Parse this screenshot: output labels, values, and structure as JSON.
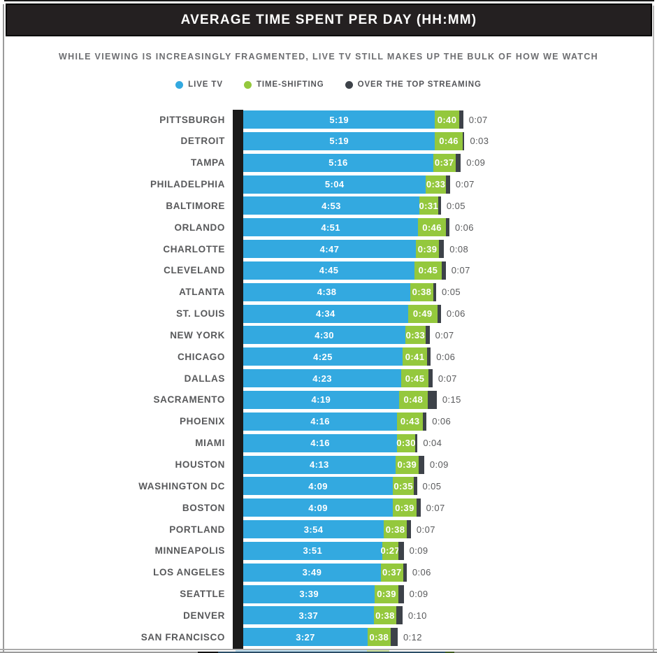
{
  "header": {
    "title": "AVERAGE TIME SPENT PER DAY (HH:MM)"
  },
  "subtitle": "WHILE VIEWING IS INCREASINGLY FRAGMENTED, LIVE TV STILL MAKES UP THE BULK OF HOW WE WATCH",
  "legend": [
    {
      "label": "LIVE TV",
      "color": "#33a9e0"
    },
    {
      "label": "TIME-SHIFTING",
      "color": "#94c83d"
    },
    {
      "label": "OVER THE TOP STREAMING",
      "color": "#3d4249"
    }
  ],
  "colors": {
    "live_tv": "#33a9e0",
    "time_shifting": "#94c83d",
    "ott_streaming": "#3d4249",
    "axis_strip": "#1a1a1a",
    "header_bg": "#242021",
    "text_gray": "#58595b"
  },
  "chart_data": {
    "type": "bar",
    "orientation": "horizontal",
    "stacked": true,
    "title": "AVERAGE TIME SPENT PER DAY (HH:MM)",
    "value_format": "H:MM",
    "legend_position": "top",
    "grid": false,
    "categories": [
      "PITTSBURGH",
      "DETROIT",
      "TAMPA",
      "PHILADELPHIA",
      "BALTIMORE",
      "ORLANDO",
      "CHARLOTTE",
      "CLEVELAND",
      "ATLANTA",
      "ST. LOUIS",
      "NEW YORK",
      "CHICAGO",
      "DALLAS",
      "SACRAMENTO",
      "PHOENIX",
      "MIAMI",
      "HOUSTON",
      "WASHINGTON DC",
      "BOSTON",
      "PORTLAND",
      "MINNEAPOLIS",
      "LOS ANGELES",
      "SEATTLE",
      "DENVER",
      "SAN FRANCISCO"
    ],
    "series": [
      {
        "name": "LIVE TV",
        "color": "#33a9e0",
        "values": [
          "5:19",
          "5:19",
          "5:16",
          "5:04",
          "4:53",
          "4:51",
          "4:47",
          "4:45",
          "4:38",
          "4:34",
          "4:30",
          "4:25",
          "4:23",
          "4:19",
          "4:16",
          "4:16",
          "4:13",
          "4:09",
          "4:09",
          "3:54",
          "3:51",
          "3:49",
          "3:39",
          "3:37",
          "3:27"
        ]
      },
      {
        "name": "TIME-SHIFTING",
        "color": "#94c83d",
        "values": [
          "0:40",
          "0:46",
          "0:37",
          "0:33",
          "0:31",
          "0:46",
          "0:39",
          "0:45",
          "0:38",
          "0:49",
          "0:33",
          "0:41",
          "0:45",
          "0:48",
          "0:43",
          "0:30",
          "0:39",
          "0:35",
          "0:39",
          "0:38",
          "0:27",
          "0:37",
          "0:39",
          "0:38",
          "0:38"
        ]
      },
      {
        "name": "OVER THE TOP STREAMING",
        "color": "#3d4249",
        "values": [
          "0:07",
          "0:03",
          "0:09",
          "0:07",
          "0:05",
          "0:06",
          "0:08",
          "0:07",
          "0:05",
          "0:06",
          "0:07",
          "0:06",
          "0:07",
          "0:15",
          "0:06",
          "0:04",
          "0:09",
          "0:05",
          "0:07",
          "0:07",
          "0:09",
          "0:06",
          "0:09",
          "0:10",
          "0:12"
        ]
      }
    ]
  }
}
